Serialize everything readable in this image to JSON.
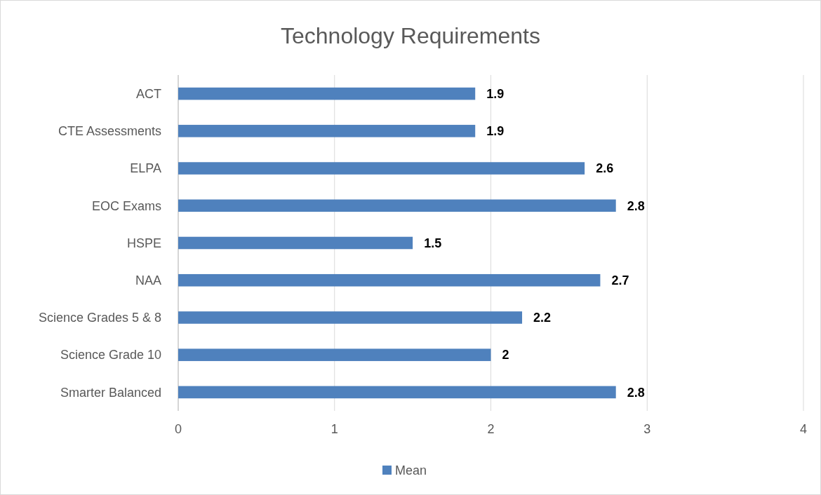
{
  "chart_data": {
    "type": "bar",
    "orientation": "horizontal",
    "title": "Technology Requirements",
    "categories": [
      "ACT",
      "CTE Assessments",
      "ELPA",
      "EOC Exams",
      "HSPE",
      "NAA",
      "Science Grades 5 & 8",
      "Science Grade 10",
      "Smarter Balanced"
    ],
    "series": [
      {
        "name": "Mean",
        "color": "#4f81bd",
        "values": [
          1.9,
          1.9,
          2.6,
          2.8,
          1.5,
          2.7,
          2.2,
          2,
          2.8
        ]
      }
    ],
    "xlim": [
      0,
      4
    ],
    "xticks": [
      0,
      1,
      2,
      3,
      4
    ],
    "grid": "x",
    "legend": "bottom",
    "data_labels": true
  }
}
